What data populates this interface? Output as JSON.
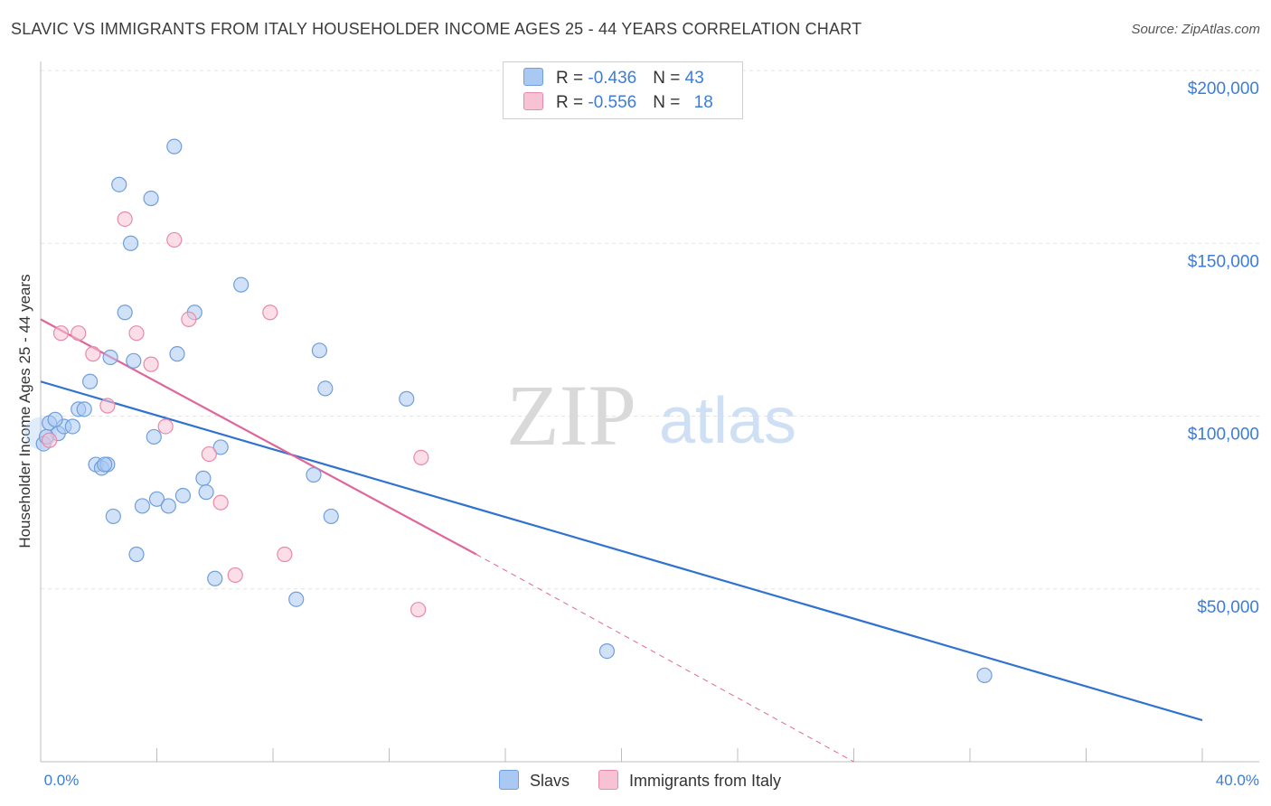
{
  "header": {
    "title": "SLAVIC VS IMMIGRANTS FROM ITALY HOUSEHOLDER INCOME AGES 25 - 44 YEARS CORRELATION CHART",
    "source": "Source: ZipAtlas.com"
  },
  "watermark": {
    "zip": "ZIP",
    "atlas": "atlas"
  },
  "legend": {
    "rows": [
      {
        "r_label": "R = ",
        "r_value": "-0.436",
        "n_label": "N = ",
        "n_value": "43"
      },
      {
        "r_label": "R = ",
        "r_value": "-0.556",
        "n_label": "N = ",
        "n_value": "18"
      }
    ]
  },
  "colors": {
    "slavs_fill": "#a9c8f2",
    "slavs_stroke": "#6f9fdc",
    "slavs_line": "#2f72d0",
    "italy_fill": "#f7c3d4",
    "italy_stroke": "#e88aa8",
    "italy_line": "#e0669a",
    "tick_text": "#3b7dd8"
  },
  "chart_data": {
    "type": "scatter",
    "title": "SLAVIC VS IMMIGRANTS FROM ITALY HOUSEHOLDER INCOME AGES 25 - 44 YEARS CORRELATION CHART",
    "xlabel": "",
    "ylabel": "Householder Income Ages 25 - 44 years",
    "xlim": [
      0,
      40
    ],
    "ylim": [
      0,
      200000
    ],
    "x_tick_labels": [
      "0.0%",
      "40.0%"
    ],
    "y_ticks": [
      50000,
      100000,
      150000,
      200000
    ],
    "y_tick_labels": [
      "$50,000",
      "$100,000",
      "$150,000",
      "$200,000"
    ],
    "grid": true,
    "series": [
      {
        "name": "Slavs",
        "r": -0.436,
        "n": 43,
        "points": [
          [
            0.1,
            92000
          ],
          [
            0.3,
            98000
          ],
          [
            0.6,
            95000
          ],
          [
            0.8,
            97000
          ],
          [
            1.1,
            97000
          ],
          [
            1.3,
            102000
          ],
          [
            1.5,
            102000
          ],
          [
            1.7,
            110000
          ],
          [
            1.9,
            86000
          ],
          [
            2.1,
            85000
          ],
          [
            2.3,
            86000
          ],
          [
            2.4,
            117000
          ],
          [
            2.5,
            71000
          ],
          [
            2.7,
            167000
          ],
          [
            2.9,
            130000
          ],
          [
            3.1,
            150000
          ],
          [
            3.2,
            116000
          ],
          [
            3.3,
            60000
          ],
          [
            3.5,
            74000
          ],
          [
            3.8,
            163000
          ],
          [
            3.9,
            94000
          ],
          [
            4.0,
            76000
          ],
          [
            4.4,
            74000
          ],
          [
            4.6,
            178000
          ],
          [
            4.7,
            118000
          ],
          [
            4.9,
            77000
          ],
          [
            5.3,
            130000
          ],
          [
            5.6,
            82000
          ],
          [
            5.7,
            78000
          ],
          [
            6.0,
            53000
          ],
          [
            6.2,
            91000
          ],
          [
            6.9,
            138000
          ],
          [
            8.8,
            47000
          ],
          [
            9.4,
            83000
          ],
          [
            9.6,
            119000
          ],
          [
            9.8,
            108000
          ],
          [
            10.0,
            71000
          ],
          [
            12.6,
            105000
          ],
          [
            19.5,
            32000
          ],
          [
            32.5,
            25000
          ],
          [
            0.2,
            94000
          ],
          [
            0.5,
            99000
          ],
          [
            2.2,
            86000
          ]
        ]
      },
      {
        "name": "Immigrants from Italy",
        "r": -0.556,
        "n": 18,
        "points": [
          [
            0.3,
            93000
          ],
          [
            0.7,
            124000
          ],
          [
            1.3,
            124000
          ],
          [
            1.8,
            118000
          ],
          [
            2.3,
            103000
          ],
          [
            2.9,
            157000
          ],
          [
            3.3,
            124000
          ],
          [
            3.8,
            115000
          ],
          [
            4.3,
            97000
          ],
          [
            4.6,
            151000
          ],
          [
            5.1,
            128000
          ],
          [
            5.8,
            89000
          ],
          [
            6.2,
            75000
          ],
          [
            6.7,
            54000
          ],
          [
            7.9,
            130000
          ],
          [
            8.4,
            60000
          ],
          [
            13.1,
            88000
          ],
          [
            13.0,
            44000
          ]
        ]
      }
    ],
    "trend_lines": [
      {
        "name": "Slavs",
        "x0": 0,
        "y0": 110000,
        "x1": 40,
        "y1": 12000,
        "style": "solid"
      },
      {
        "name": "Immigrants from Italy",
        "x0": 0,
        "y0": 128000,
        "x1": 15,
        "y1": 60000,
        "style": "solid"
      },
      {
        "name": "Immigrants from Italy (extrapolated)",
        "x0": 15,
        "y0": 60000,
        "x1": 28,
        "y1": 0,
        "style": "dashed"
      }
    ]
  },
  "bottom_legend": {
    "slavs": "Slavs",
    "italy": "Immigrants from Italy"
  }
}
